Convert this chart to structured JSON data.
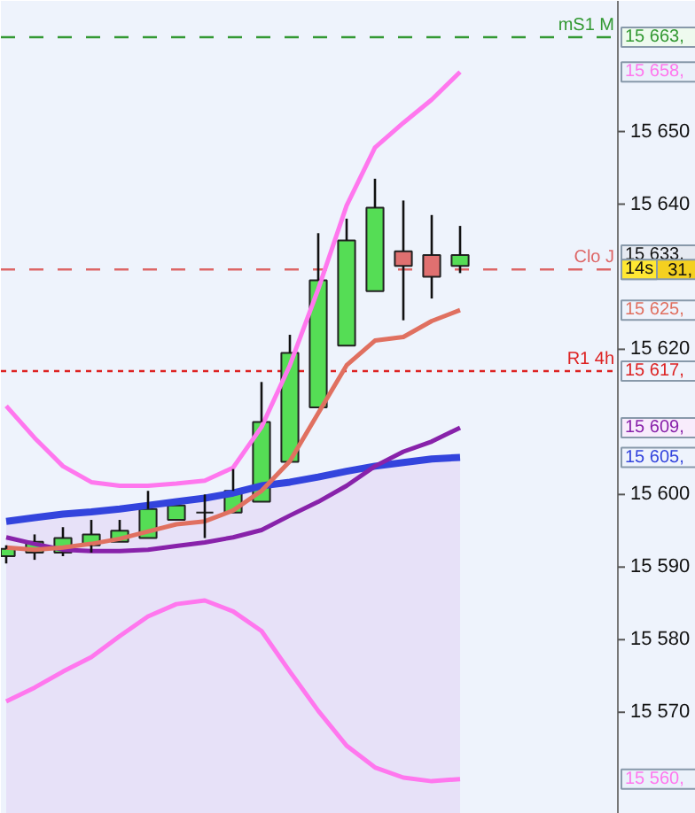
{
  "chart_data": {
    "type": "candlestick",
    "categories": [
      null,
      null,
      null,
      null,
      null,
      null,
      null,
      null,
      null,
      null,
      null,
      null,
      null,
      null,
      null,
      null,
      null
    ],
    "ohlc": [
      [
        15591.5,
        15593,
        15590.5,
        15592.5
      ],
      [
        15592,
        15594.5,
        15591,
        15593.5
      ],
      [
        15592,
        15595.5,
        15591.5,
        15594
      ],
      [
        15593,
        15596.5,
        15592,
        15594.5
      ],
      [
        15593.5,
        15596.5,
        15593.5,
        15595
      ],
      [
        15594,
        15600.5,
        15594,
        15598
      ],
      [
        15596.5,
        15598.5,
        15596.5,
        15598.5
      ],
      [
        15597.5,
        15600,
        15594,
        15597.5
      ],
      [
        15597.5,
        15603.5,
        15597.5,
        15600.5
      ],
      [
        15599,
        15615.5,
        15599,
        15610
      ],
      [
        15604.5,
        15622,
        15604.5,
        15619.5
      ],
      [
        15612,
        15636,
        15612,
        15629.5
      ],
      [
        15620.5,
        15638,
        15620.5,
        15635
      ],
      [
        15628,
        15643.5,
        15628,
        15639.5
      ],
      [
        15633.5,
        15640.5,
        15624,
        15631.5
      ],
      [
        15633,
        15638.5,
        15627,
        15630
      ],
      [
        15631.5,
        15637,
        15630.5,
        15633
      ]
    ],
    "series": [
      {
        "type": "area",
        "color": "#3344dd",
        "values": [
          15596.3,
          15596.8,
          15597.3,
          15597.6,
          15598.0,
          15598.5,
          15599.0,
          15599.5,
          15600.2,
          15601.2,
          15601.7,
          15602.4,
          15603.2,
          15603.9,
          15604.4,
          15604.9,
          15605.1
        ]
      },
      {
        "type": "line",
        "color": "#8822aa",
        "values": [
          15594.1,
          15593.2,
          15592.4,
          15592.2,
          15592.2,
          15592.4,
          15592.9,
          15593.4,
          15594.1,
          15595.1,
          15597.1,
          15599.0,
          15601.2,
          15603.9,
          15605.9,
          15607.3,
          15609.2
        ]
      },
      {
        "type": "line",
        "color": "#e07060",
        "values": [
          15592.7,
          15592.4,
          15592.7,
          15593.2,
          15593.9,
          15594.9,
          15595.9,
          15596.3,
          15597.8,
          15600.5,
          15604.6,
          15611.2,
          15617.8,
          15621.2,
          15621.7,
          15623.9,
          15625.4
        ]
      },
      {
        "type": "line",
        "color": "#ff77ee",
        "values": [
          15612.2,
          15607.8,
          15603.9,
          15601.7,
          15601.2,
          15601.2,
          15601.5,
          15601.9,
          15603.7,
          15609.3,
          15617.8,
          15628.3,
          15639.8,
          15647.8,
          15651.2,
          15654.4,
          15658.2
        ]
      },
      {
        "type": "line",
        "color": "#ff77ee",
        "values": [
          15571.5,
          15573.4,
          15575.6,
          15577.6,
          15580.5,
          15583.2,
          15584.9,
          15585.4,
          15583.9,
          15581.2,
          15575.6,
          15570.2,
          15565.4,
          15562.4,
          15561.0,
          15560.5,
          15560.8
        ]
      }
    ],
    "ylim": [
      15556,
      15668
    ],
    "yticks": [
      {
        "value": 15570,
        "label": "15 570"
      },
      {
        "value": 15580,
        "label": "15 580"
      },
      {
        "value": 15590,
        "label": "15 590"
      },
      {
        "value": 15600,
        "label": "15 600"
      },
      {
        "value": 15620,
        "label": "15 620"
      },
      {
        "value": 15640,
        "label": "15 640"
      },
      {
        "value": 15650,
        "label": "15 650"
      }
    ],
    "ref_lines": [
      {
        "axis": "y",
        "value": 15663,
        "label": "mS1 M",
        "color": "#339933",
        "line_style": "dashed"
      },
      {
        "axis": "y",
        "value": 15631,
        "label": "Clo J",
        "color": "#dd6666",
        "line_style": "dashed"
      },
      {
        "axis": "y",
        "value": 15617,
        "label": "R1 4h",
        "color": "#dd2222",
        "line_style": "dotted"
      }
    ],
    "annotations": [
      "15 663,",
      "31,",
      "15 617,",
      "15 633,",
      "14s",
      "15 605,",
      "15 609,",
      "15 625,",
      "15 658,",
      "15 560,"
    ],
    "grid": false,
    "marker": "none"
  }
}
